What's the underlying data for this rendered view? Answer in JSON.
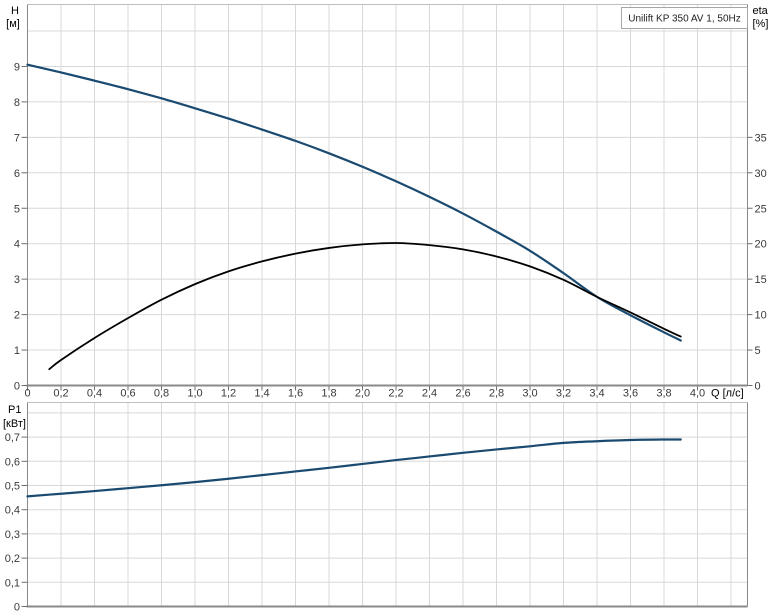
{
  "title_box": "Unilift KP 350 AV 1, 50Hz",
  "colors": {
    "curve_blue": "#1a4a70",
    "curve_black": "#000000",
    "grid": "#d8d8d8",
    "frame_light": "#bfbfbf",
    "axis_dark": "#8a8a8a",
    "tick": "#6f6f6f",
    "text": "#3a3a3a",
    "title_text": "#222222",
    "title_border": "#a6a6a6"
  },
  "chart_data": [
    {
      "type": "line",
      "title": "Unilift KP 350 AV 1, 50Hz",
      "grid": true,
      "x_axis": {
        "label": "Q [л/с]",
        "tick_step": 0.2,
        "xlim": [
          0,
          4.3
        ],
        "tick_labels": [
          "0",
          "0,2",
          "0,4",
          "0,6",
          "0,8",
          "1,0",
          "1,2",
          "1,4",
          "1,6",
          "1,8",
          "2,0",
          "2,2",
          "2,4",
          "2,6",
          "2,8",
          "3,0",
          "3,2",
          "3,4",
          "3,6",
          "3,8",
          "4,0"
        ]
      },
      "left_axis": {
        "name": "H",
        "unit": "[м]",
        "tick_step": 1,
        "ylim": [
          0,
          10.75
        ],
        "tick_labels": [
          "0",
          "1",
          "2",
          "3",
          "4",
          "5",
          "6",
          "7",
          "8",
          "9"
        ]
      },
      "right_axis": {
        "name": "eta",
        "unit": "[%]",
        "tick_step": 5,
        "ylim": [
          0,
          53.7
        ],
        "tick_labels": [
          "0",
          "5",
          "10",
          "15",
          "20",
          "25",
          "30",
          "35"
        ]
      },
      "series": [
        {
          "name": "H",
          "axis": "left",
          "color_key": "curve_blue",
          "points": [
            [
              0,
              9.05
            ],
            [
              0.2,
              8.83
            ],
            [
              0.4,
              8.6
            ],
            [
              0.6,
              8.36
            ],
            [
              0.8,
              8.1
            ],
            [
              1.0,
              7.82
            ],
            [
              1.2,
              7.53
            ],
            [
              1.4,
              7.22
            ],
            [
              1.6,
              6.9
            ],
            [
              1.8,
              6.55
            ],
            [
              2.0,
              6.17
            ],
            [
              2.2,
              5.76
            ],
            [
              2.4,
              5.32
            ],
            [
              2.6,
              4.85
            ],
            [
              2.8,
              4.34
            ],
            [
              3.0,
              3.8
            ],
            [
              3.2,
              3.17
            ],
            [
              3.4,
              2.5
            ],
            [
              3.6,
              1.98
            ],
            [
              3.8,
              1.5
            ],
            [
              3.9,
              1.27
            ]
          ]
        },
        {
          "name": "eta",
          "axis": "right",
          "color_key": "curve_black",
          "points": [
            [
              0.13,
              2.3
            ],
            [
              0.2,
              3.6
            ],
            [
              0.4,
              6.7
            ],
            [
              0.6,
              9.5
            ],
            [
              0.8,
              12.1
            ],
            [
              1.0,
              14.3
            ],
            [
              1.2,
              16.1
            ],
            [
              1.4,
              17.5
            ],
            [
              1.6,
              18.6
            ],
            [
              1.8,
              19.4
            ],
            [
              2.0,
              19.9
            ],
            [
              2.2,
              20.1
            ],
            [
              2.4,
              19.8
            ],
            [
              2.6,
              19.2
            ],
            [
              2.8,
              18.2
            ],
            [
              3.0,
              16.8
            ],
            [
              3.2,
              14.9
            ],
            [
              3.4,
              12.5
            ],
            [
              3.6,
              10.3
            ],
            [
              3.8,
              8.0
            ],
            [
              3.9,
              6.9
            ]
          ]
        }
      ]
    },
    {
      "type": "line",
      "grid": true,
      "x_axis": {
        "tick_step": 0.2,
        "xlim": [
          0,
          4.3
        ],
        "tick_labels": []
      },
      "left_axis": {
        "name": "P1",
        "unit": "[кВт]",
        "tick_step": 0.1,
        "ylim": [
          0,
          0.845
        ],
        "tick_labels": [
          "0",
          "0,1",
          "0,2",
          "0,3",
          "0,4",
          "0,5",
          "0,6",
          "0,7"
        ]
      },
      "series": [
        {
          "name": "P1",
          "axis": "left",
          "color_key": "curve_blue",
          "points": [
            [
              0,
              0.455
            ],
            [
              0.2,
              0.466
            ],
            [
              0.4,
              0.477
            ],
            [
              0.6,
              0.489
            ],
            [
              0.8,
              0.501
            ],
            [
              1.0,
              0.514
            ],
            [
              1.2,
              0.528
            ],
            [
              1.4,
              0.543
            ],
            [
              1.6,
              0.558
            ],
            [
              1.8,
              0.573
            ],
            [
              2.0,
              0.589
            ],
            [
              2.2,
              0.605
            ],
            [
              2.4,
              0.62
            ],
            [
              2.6,
              0.635
            ],
            [
              2.8,
              0.649
            ],
            [
              3.0,
              0.662
            ],
            [
              3.2,
              0.676
            ],
            [
              3.4,
              0.683
            ],
            [
              3.6,
              0.688
            ],
            [
              3.8,
              0.69
            ],
            [
              3.9,
              0.69
            ]
          ]
        }
      ]
    }
  ]
}
